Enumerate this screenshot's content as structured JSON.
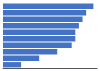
{
  "chart_data": {
    "type": "bar",
    "orientation": "horizontal",
    "categories": [
      null,
      null,
      null,
      null,
      null,
      null,
      null,
      null,
      null,
      null
    ],
    "values": [
      25,
      23,
      22,
      21,
      20,
      20,
      19,
      15,
      10,
      5
    ],
    "color": "#4472c4",
    "xlim": [
      0,
      26
    ],
    "grid": false,
    "tick_labels": false
  }
}
